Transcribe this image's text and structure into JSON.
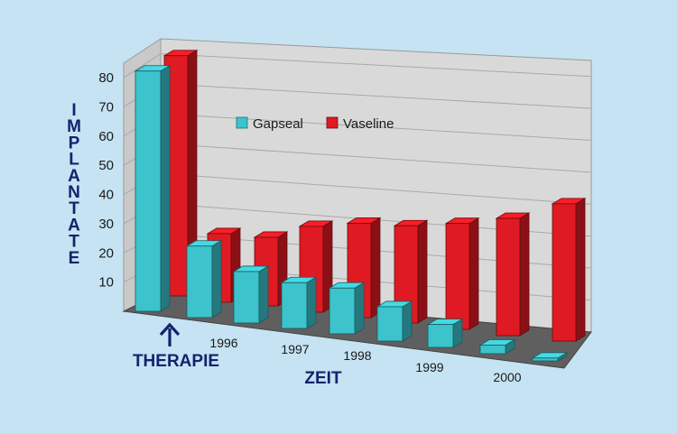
{
  "chart_data": {
    "type": "bar",
    "categories": [
      "THERAPIE",
      "",
      "1996",
      "",
      "1997",
      "",
      "1998",
      "",
      "1999",
      "",
      "2000"
    ],
    "series": [
      {
        "name": "Gapseal",
        "color": "#3cc3cc",
        "values": [
          84,
          25,
          18,
          16,
          16,
          12,
          8,
          3,
          1,
          0,
          0
        ]
      },
      {
        "name": "Vaseline",
        "color": "#e01a22",
        "values": [
          84,
          24,
          24,
          30,
          33,
          34,
          37,
          41,
          48,
          0,
          0
        ]
      }
    ],
    "title": "",
    "ylabel": "IMPLANTATE",
    "xlabel": "ZEIT",
    "yticks": [
      "80",
      "70",
      "60",
      "50",
      "40",
      "30",
      "20",
      "10"
    ],
    "ylim": [
      0,
      85
    ],
    "grid": true,
    "legend_position": "top-left inside"
  }
}
